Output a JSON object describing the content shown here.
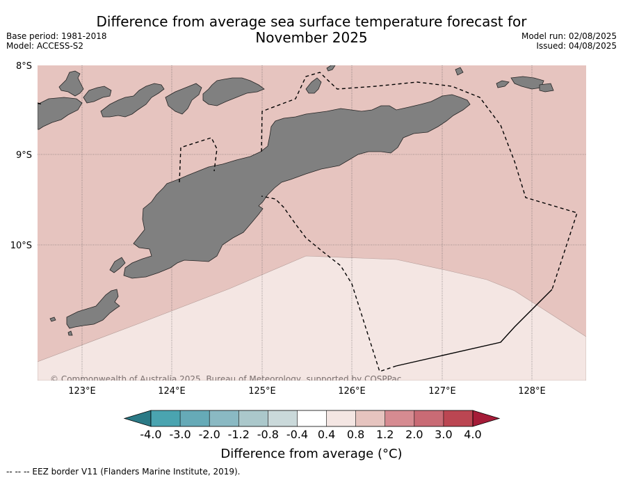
{
  "title": {
    "line1": "Difference from average sea surface temperature forecast for",
    "line2": "November 2025"
  },
  "meta": {
    "base_period": "Base period: 1981-2018",
    "model": "Model: ACCESS-S2",
    "model_run": "Model run: 02/08/2025",
    "issued": "Issued: 04/08/2025"
  },
  "map": {
    "lat_labels": [
      "8°S",
      "9°S",
      "10°S"
    ],
    "lon_labels": [
      "123°E",
      "124°E",
      "125°E",
      "126°E",
      "127°E",
      "128°E"
    ],
    "copyright": "© Commonwealth of Australia 2025, Bureau of Meteorology, supported by COSPPac",
    "land_color": "#808080",
    "anomaly_fill_0_8_to_1_2": "#e6c4bf",
    "anomaly_fill_0_4_to_0_8": "#f4e6e3"
  },
  "colorbar": {
    "ticks": [
      "-4.0",
      "-3.0",
      "-2.0",
      "-1.2",
      "-0.8",
      "-0.4",
      "0.4",
      "0.8",
      "1.2",
      "2.0",
      "3.0",
      "4.0"
    ],
    "colors": [
      "#4aa4b0",
      "#66aab7",
      "#8ab9c3",
      "#abc8cb",
      "#cad9da",
      "#ffffff",
      "#f4e6e3",
      "#e6c4bf",
      "#d68b91",
      "#c96b75",
      "#bb4652"
    ],
    "under_color": "#2b7a86",
    "over_color": "#a51c38",
    "label": "Difference from average (°C)"
  },
  "footnote": "-- -- -- EEZ border V11 (Flanders Marine Institute, 2019)."
}
